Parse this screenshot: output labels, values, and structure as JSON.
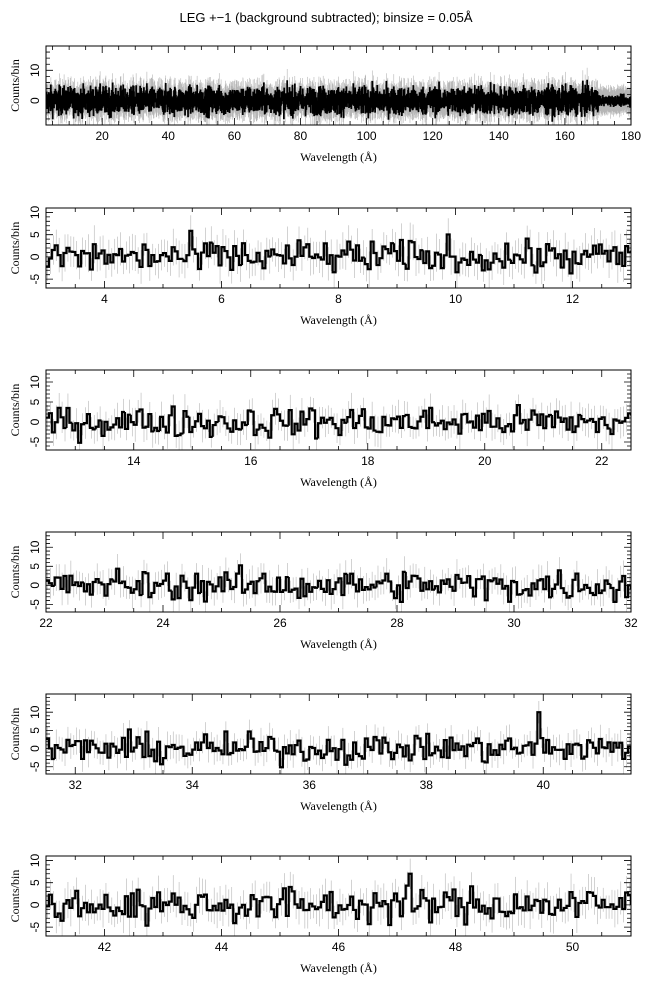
{
  "title": "LEG +−1 (background subtracted); binsize = 0.05Å",
  "chart_data": [
    {
      "type": "line",
      "xlabel": "Wavelength (Å)",
      "ylabel": "Counts/bin",
      "xlim": [
        3,
        180
      ],
      "ylim": [
        -8,
        18
      ],
      "xticks": [
        20,
        40,
        60,
        80,
        100,
        120,
        140,
        160,
        180
      ],
      "yticks": [
        0,
        10
      ],
      "step": 0.05,
      "noise_amplitude": 3,
      "noise_decay_after": 170
    },
    {
      "type": "line",
      "xlabel": "Wavelength (Å)",
      "ylabel": "Counts/bin",
      "xlim": [
        3,
        13
      ],
      "ylim": [
        -7,
        11
      ],
      "xticks": [
        4,
        6,
        8,
        10,
        12
      ],
      "yticks": [
        -5,
        0,
        5,
        10
      ],
      "step": 0.05
    },
    {
      "type": "line",
      "xlabel": "Wavelength (Å)",
      "ylabel": "Counts/bin",
      "xlim": [
        12.5,
        22.5
      ],
      "ylim": [
        -7,
        13
      ],
      "xticks": [
        14,
        16,
        18,
        20,
        22
      ],
      "yticks": [
        -5,
        0,
        5,
        10
      ],
      "step": 0.05
    },
    {
      "type": "line",
      "xlabel": "Wavelength (Å)",
      "ylabel": "Counts/bin",
      "xlim": [
        22,
        32
      ],
      "ylim": [
        -7,
        14
      ],
      "xticks": [
        22,
        24,
        26,
        28,
        30,
        32
      ],
      "yticks": [
        -5,
        0,
        5,
        10
      ],
      "step": 0.05
    },
    {
      "type": "line",
      "xlabel": "Wavelength (Å)",
      "ylabel": "Counts/bin",
      "xlim": [
        31.5,
        41.5
      ],
      "ylim": [
        -7,
        15
      ],
      "xticks": [
        32,
        34,
        36,
        38,
        40
      ],
      "yticks": [
        -5,
        0,
        5,
        10
      ],
      "step": 0.05,
      "peaks": [
        {
          "x": 39.9,
          "y": 10
        }
      ]
    },
    {
      "type": "line",
      "xlabel": "Wavelength (Å)",
      "ylabel": "Counts/bin",
      "xlim": [
        41,
        51
      ],
      "ylim": [
        -7,
        11
      ],
      "xticks": [
        42,
        44,
        46,
        48,
        50
      ],
      "yticks": [
        -5,
        0,
        5,
        10
      ],
      "step": 0.05,
      "peaks": [
        {
          "x": 47.2,
          "y": 7
        }
      ]
    }
  ]
}
